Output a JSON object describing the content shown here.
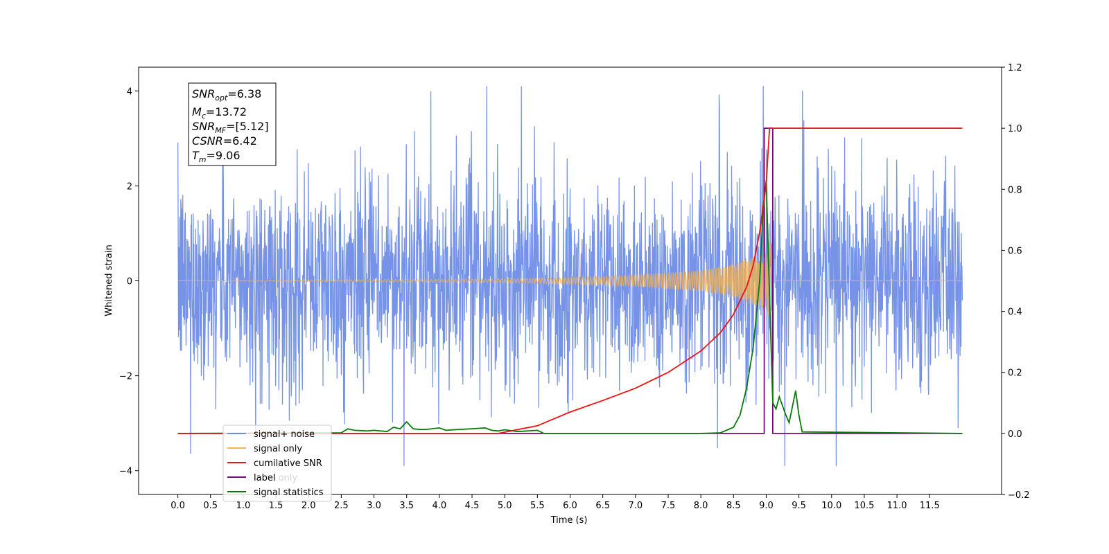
{
  "chart_data": {
    "type": "line",
    "xlabel": "Time (s)",
    "ylabel": "Whitened strain",
    "xlim": [
      -0.6,
      12.6
    ],
    "ylim": [
      -4.5,
      4.5
    ],
    "y2lim": [
      -0.2,
      1.2
    ],
    "xticks": [
      "0.0",
      "0.5",
      "1.0",
      "1.5",
      "2.0",
      "2.5",
      "3.0",
      "3.5",
      "4.0",
      "4.5",
      "5.0",
      "5.5",
      "6.0",
      "6.5",
      "7.0",
      "7.5",
      "8.0",
      "8.5",
      "9.0",
      "9.5",
      "10.0",
      "10.5",
      "11.0",
      "11.5"
    ],
    "yticks": [
      "4",
      "2",
      "0",
      "−2",
      "−4"
    ],
    "y2ticks": [
      "1.2",
      "1.0",
      "0.8",
      "0.6",
      "0.4",
      "0.2",
      "0.0",
      "−0.2"
    ],
    "annotation": {
      "snr_opt": "=6.38",
      "mc": "=13.72",
      "snr_mf": "=[5.12]",
      "csnr": "=6.42",
      "tm": "=9.06"
    },
    "legend": {
      "placement": "lower-left",
      "items": [
        "signal+ noise",
        "signal only",
        "cumilative SNR",
        "label",
        "signal statistics"
      ],
      "hidden_text": "label only"
    },
    "colors": {
      "noise": "#6f8de6",
      "signal": "#f8b24c",
      "cumulative": "#ee1111",
      "label": "#7a0a78",
      "statistics": "#0a7a0a"
    },
    "series": [
      {
        "name": "signal+ noise",
        "axis": "left",
        "description_range": [
          -4.0,
          4.0
        ],
        "t_range": [
          0.0,
          12.0
        ]
      },
      {
        "name": "signal only",
        "axis": "left",
        "x": [
          0.0,
          5.0,
          6.0,
          7.0,
          8.0,
          8.5,
          8.8,
          9.0,
          9.05,
          9.1,
          12.0
        ],
        "envelope": [
          0.0,
          0.04,
          0.07,
          0.12,
          0.22,
          0.35,
          0.5,
          0.6,
          1.0,
          0.0,
          0.0
        ]
      },
      {
        "name": "cumilative SNR",
        "axis": "right",
        "x": [
          0.0,
          4.9,
          5.5,
          6.0,
          6.5,
          7.0,
          7.5,
          8.0,
          8.3,
          8.5,
          8.7,
          8.8,
          8.9,
          9.0,
          9.05,
          12.0
        ],
        "values": [
          0.0,
          0.0,
          0.025,
          0.07,
          0.108,
          0.148,
          0.2,
          0.27,
          0.33,
          0.39,
          0.48,
          0.55,
          0.66,
          0.82,
          1.0,
          1.0
        ]
      },
      {
        "name": "label",
        "axis": "right",
        "x": [
          0.0,
          8.97,
          8.97,
          9.1,
          9.1,
          12.0
        ],
        "values": [
          0.0,
          0.0,
          1.0,
          1.0,
          0.0,
          0.0
        ]
      },
      {
        "name": "signal statistics",
        "axis": "right",
        "x": [
          0.0,
          2.5,
          2.6,
          2.7,
          2.9,
          3.0,
          3.2,
          3.3,
          3.4,
          3.5,
          3.6,
          3.7,
          3.8,
          4.0,
          4.1,
          4.3,
          4.5,
          4.7,
          4.8,
          4.9,
          5.0,
          5.2,
          5.5,
          5.6,
          8.0,
          8.3,
          8.5,
          8.6,
          8.7,
          8.8,
          8.9,
          8.95,
          9.0,
          9.03,
          9.1,
          9.15,
          9.2,
          9.3,
          9.35,
          9.45,
          9.5,
          9.55,
          12.0
        ],
        "values": [
          0.0,
          0.002,
          0.015,
          0.01,
          0.008,
          0.01,
          0.006,
          0.02,
          0.015,
          0.038,
          0.015,
          0.013,
          0.013,
          0.018,
          0.01,
          0.013,
          0.015,
          0.018,
          0.01,
          0.008,
          0.012,
          0.006,
          0.01,
          0.0,
          0.0,
          0.002,
          0.02,
          0.06,
          0.15,
          0.28,
          0.5,
          0.72,
          0.83,
          0.6,
          0.1,
          0.08,
          0.12,
          0.06,
          0.035,
          0.14,
          0.06,
          0.005,
          0.0
        ]
      }
    ]
  }
}
